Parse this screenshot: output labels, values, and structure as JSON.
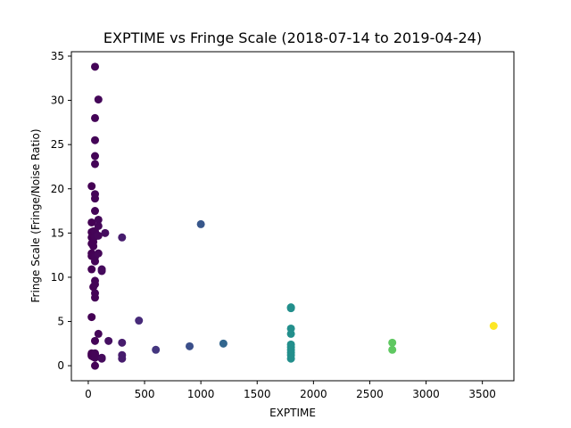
{
  "chart_data": {
    "type": "scatter",
    "title": "EXPTIME vs Fringe Scale (2018-07-14 to 2019-04-24)",
    "xlabel": "EXPTIME",
    "ylabel": "Fringe Scale (Fringe/Noise Ratio)",
    "xlim": [
      -150,
      3780
    ],
    "ylim": [
      -1.7,
      35.5
    ],
    "xticks": [
      0,
      500,
      1000,
      1500,
      2000,
      2500,
      3000,
      3500
    ],
    "yticks": [
      0,
      5,
      10,
      15,
      20,
      25,
      30,
      35
    ],
    "grid": false,
    "colormap": "viridis",
    "color_by": "x",
    "color_range": [
      30,
      3600
    ],
    "points": [
      {
        "x": 30,
        "y": 20.3
      },
      {
        "x": 30,
        "y": 16.2
      },
      {
        "x": 30,
        "y": 15.1
      },
      {
        "x": 30,
        "y": 14.5
      },
      {
        "x": 30,
        "y": 13.8
      },
      {
        "x": 30,
        "y": 12.7
      },
      {
        "x": 30,
        "y": 12.4
      },
      {
        "x": 30,
        "y": 10.9
      },
      {
        "x": 30,
        "y": 5.5
      },
      {
        "x": 30,
        "y": 1.4
      },
      {
        "x": 30,
        "y": 1.3
      },
      {
        "x": 30,
        "y": 1.2
      },
      {
        "x": 30,
        "y": 1.1
      },
      {
        "x": 45,
        "y": 15.2
      },
      {
        "x": 45,
        "y": 14.8
      },
      {
        "x": 45,
        "y": 14.0
      },
      {
        "x": 45,
        "y": 13.5
      },
      {
        "x": 45,
        "y": 12.5
      },
      {
        "x": 45,
        "y": 8.9
      },
      {
        "x": 45,
        "y": 1.2
      },
      {
        "x": 45,
        "y": 1.0
      },
      {
        "x": 60,
        "y": 33.8
      },
      {
        "x": 60,
        "y": 28.0
      },
      {
        "x": 60,
        "y": 25.5
      },
      {
        "x": 60,
        "y": 23.7
      },
      {
        "x": 60,
        "y": 22.8
      },
      {
        "x": 60,
        "y": 19.4
      },
      {
        "x": 60,
        "y": 18.9
      },
      {
        "x": 60,
        "y": 17.5
      },
      {
        "x": 60,
        "y": 15.2
      },
      {
        "x": 60,
        "y": 14.6
      },
      {
        "x": 60,
        "y": 12.3
      },
      {
        "x": 60,
        "y": 11.8
      },
      {
        "x": 60,
        "y": 9.6
      },
      {
        "x": 60,
        "y": 9.2
      },
      {
        "x": 60,
        "y": 8.2
      },
      {
        "x": 60,
        "y": 7.7
      },
      {
        "x": 60,
        "y": 2.8
      },
      {
        "x": 60,
        "y": 1.4
      },
      {
        "x": 60,
        "y": 1.2
      },
      {
        "x": 60,
        "y": 0.9
      },
      {
        "x": 60,
        "y": 0.0
      },
      {
        "x": 90,
        "y": 30.1
      },
      {
        "x": 90,
        "y": 16.5
      },
      {
        "x": 90,
        "y": 15.8
      },
      {
        "x": 90,
        "y": 14.7
      },
      {
        "x": 90,
        "y": 12.7
      },
      {
        "x": 90,
        "y": 3.6
      },
      {
        "x": 120,
        "y": 10.9
      },
      {
        "x": 120,
        "y": 10.7
      },
      {
        "x": 120,
        "y": 0.9
      },
      {
        "x": 120,
        "y": 0.8
      },
      {
        "x": 150,
        "y": 15.0
      },
      {
        "x": 180,
        "y": 2.8
      },
      {
        "x": 300,
        "y": 14.5
      },
      {
        "x": 300,
        "y": 2.6
      },
      {
        "x": 300,
        "y": 1.2
      },
      {
        "x": 300,
        "y": 0.8
      },
      {
        "x": 450,
        "y": 5.1
      },
      {
        "x": 600,
        "y": 1.8
      },
      {
        "x": 900,
        "y": 2.2
      },
      {
        "x": 1000,
        "y": 16.0
      },
      {
        "x": 1200,
        "y": 2.5
      },
      {
        "x": 1800,
        "y": 6.6
      },
      {
        "x": 1800,
        "y": 6.5
      },
      {
        "x": 1800,
        "y": 4.2
      },
      {
        "x": 1800,
        "y": 3.6
      },
      {
        "x": 1800,
        "y": 2.4
      },
      {
        "x": 1800,
        "y": 2.1
      },
      {
        "x": 1800,
        "y": 1.8
      },
      {
        "x": 1800,
        "y": 1.5
      },
      {
        "x": 1800,
        "y": 1.2
      },
      {
        "x": 1800,
        "y": 0.8
      },
      {
        "x": 2700,
        "y": 2.6
      },
      {
        "x": 2700,
        "y": 1.8
      },
      {
        "x": 3600,
        "y": 4.5
      }
    ]
  }
}
